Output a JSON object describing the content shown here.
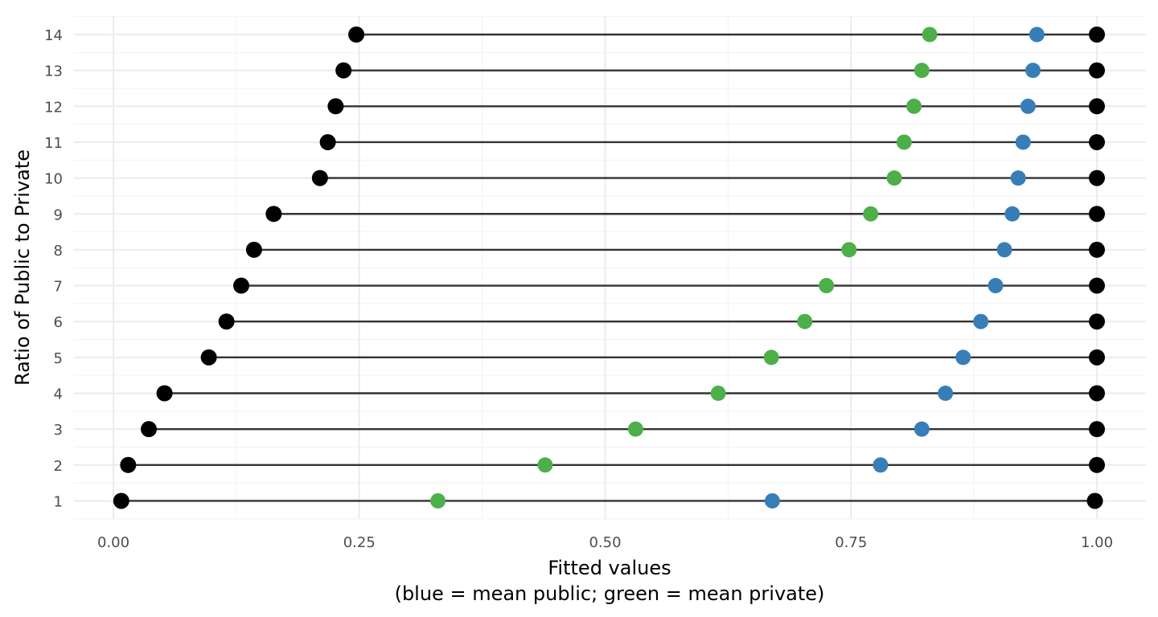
{
  "chart_data": {
    "type": "dumbbell",
    "xlabel": "Fitted values",
    "xlabel_note": "(blue = mean public; green = mean private)",
    "ylabel": "Ratio of Public to Private",
    "xlim": [
      -0.04,
      1.045
    ],
    "ylim": [
      0.5,
      14.5
    ],
    "x_ticks": [
      "0.00",
      "0.25",
      "0.50",
      "0.75",
      "1.00"
    ],
    "x_tick_values": [
      0,
      0.25,
      0.5,
      0.75,
      1.0
    ],
    "categories": [
      "1",
      "2",
      "3",
      "4",
      "5",
      "6",
      "7",
      "8",
      "9",
      "10",
      "11",
      "12",
      "13",
      "14"
    ],
    "series": [
      {
        "role": "min",
        "color": "#000000",
        "values": [
          0.008,
          0.015,
          0.036,
          0.052,
          0.097,
          0.115,
          0.13,
          0.143,
          0.163,
          0.21,
          0.218,
          0.226,
          0.234,
          0.247
        ]
      },
      {
        "role": "mean private",
        "color": "#4daf4a",
        "values": [
          0.33,
          0.439,
          0.531,
          0.615,
          0.669,
          0.703,
          0.725,
          0.748,
          0.77,
          0.794,
          0.804,
          0.814,
          0.822,
          0.83
        ]
      },
      {
        "role": "mean public",
        "color": "#377eb8",
        "values": [
          0.67,
          0.78,
          0.822,
          0.846,
          0.864,
          0.882,
          0.897,
          0.906,
          0.914,
          0.92,
          0.925,
          0.93,
          0.935,
          0.939
        ]
      },
      {
        "role": "max",
        "color": "#000000",
        "values": [
          0.998,
          1.0,
          1.0,
          1.0,
          1.0,
          1.0,
          1.0,
          1.0,
          1.0,
          1.0,
          1.0,
          1.0,
          1.0,
          1.0
        ]
      }
    ],
    "grid": true,
    "segment_color": "#333333"
  }
}
